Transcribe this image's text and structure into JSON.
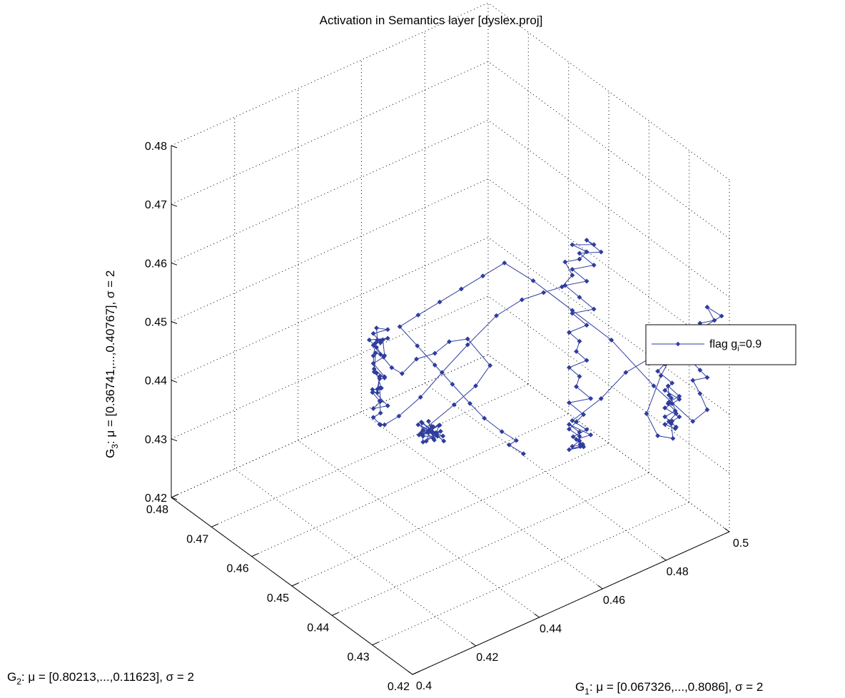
{
  "chart_data": {
    "type": "scatter",
    "title": "Activation in Semantics layer [dyslex.proj]",
    "xlabel": {
      "base": "G",
      "sub": "1",
      "rest": ": μ = [0.067326,...,0.8086], σ = 2"
    },
    "ylabel": {
      "base": "G",
      "sub": "2",
      "rest": ": μ = [0.80213,...,0.11623], σ = 2"
    },
    "zlabel": {
      "base": "G",
      "sub": "3",
      "rest": ": μ = [0.36741,...,0.40767], σ = 2"
    },
    "xlim": [
      0.4,
      0.5
    ],
    "ylim": [
      0.42,
      0.48
    ],
    "zlim": [
      0.42,
      0.48
    ],
    "xticks": [
      "0.4",
      "0.42",
      "0.44",
      "0.46",
      "0.48",
      "0.5"
    ],
    "yticks": [
      "0.42",
      "0.43",
      "0.44",
      "0.45",
      "0.46",
      "0.47",
      "0.48"
    ],
    "zticks": [
      "0.42",
      "0.43",
      "0.44",
      "0.45",
      "0.46",
      "0.47",
      "0.48"
    ],
    "grid": true,
    "legend_position": "right",
    "series": [
      {
        "name": {
          "base": "flag g",
          "sub": "i",
          "rest": "=0.9"
        },
        "color": "#2e3d9e",
        "marker": "diamond",
        "points": [
          [
            0.452,
            0.455,
            0.4305
          ],
          [
            0.451,
            0.456,
            0.4312
          ],
          [
            0.453,
            0.454,
            0.4298
          ],
          [
            0.45,
            0.457,
            0.4321
          ],
          [
            0.452,
            0.455,
            0.4309
          ],
          [
            0.449,
            0.456,
            0.4296
          ],
          [
            0.451,
            0.458,
            0.4315
          ],
          [
            0.453,
            0.456,
            0.4302
          ],
          [
            0.45,
            0.455,
            0.4318
          ],
          [
            0.452,
            0.457,
            0.43
          ],
          [
            0.451,
            0.454,
            0.4311
          ],
          [
            0.449,
            0.456,
            0.4306
          ],
          [
            0.454,
            0.455,
            0.4299
          ],
          [
            0.45,
            0.458,
            0.4313
          ],
          [
            0.452,
            0.456,
            0.4304
          ],
          [
            0.451,
            0.455,
            0.4322
          ],
          [
            0.453,
            0.457,
            0.4308
          ],
          [
            0.45,
            0.456,
            0.4295
          ],
          [
            0.452,
            0.454,
            0.4317
          ],
          [
            0.449,
            0.457,
            0.4303
          ],
          [
            0.451,
            0.456,
            0.431
          ],
          [
            0.453,
            0.455,
            0.432
          ],
          [
            0.45,
            0.457,
            0.4301
          ],
          [
            0.452,
            0.456,
            0.4314
          ],
          [
            0.451,
            0.458,
            0.4297
          ],
          [
            0.454,
            0.456,
            0.4312
          ],
          [
            0.45,
            0.454,
            0.4307
          ],
          [
            0.452,
            0.457,
            0.4319
          ],
          [
            0.451,
            0.455,
            0.4302
          ],
          [
            0.449,
            0.456,
            0.4316
          ],
          [
            0.455,
            0.453,
            0.436
          ],
          [
            0.458,
            0.45,
            0.44
          ],
          [
            0.46,
            0.448,
            0.444
          ],
          [
            0.458,
            0.452,
            0.447
          ],
          [
            0.456,
            0.455,
            0.4455
          ],
          [
            0.454,
            0.457,
            0.443
          ],
          [
            0.452,
            0.46,
            0.441
          ],
          [
            0.45,
            0.462,
            0.438
          ],
          [
            0.448,
            0.463,
            0.439
          ],
          [
            0.447,
            0.465,
            0.4405
          ],
          [
            0.446,
            0.466,
            0.4418
          ],
          [
            0.447,
            0.465,
            0.4428
          ],
          [
            0.448,
            0.464,
            0.4435
          ],
          [
            0.446,
            0.467,
            0.4422
          ],
          [
            0.447,
            0.466,
            0.4412
          ],
          [
            0.448,
            0.465,
            0.4398
          ],
          [
            0.446,
            0.466,
            0.4387
          ],
          [
            0.447,
            0.464,
            0.4372
          ],
          [
            0.448,
            0.466,
            0.436
          ],
          [
            0.446,
            0.465,
            0.4348
          ],
          [
            0.447,
            0.467,
            0.4335
          ],
          [
            0.448,
            0.464,
            0.432
          ],
          [
            0.446,
            0.466,
            0.431
          ],
          [
            0.447,
            0.465,
            0.4325
          ],
          [
            0.448,
            0.466,
            0.434
          ],
          [
            0.446,
            0.464,
            0.4355
          ],
          [
            0.447,
            0.466,
            0.4368
          ],
          [
            0.445,
            0.465,
            0.438
          ],
          [
            0.448,
            0.467,
            0.4395
          ],
          [
            0.447,
            0.464,
            0.4408
          ],
          [
            0.449,
            0.466,
            0.442
          ],
          [
            0.446,
            0.465,
            0.4432
          ],
          [
            0.447,
            0.466,
            0.4445
          ],
          [
            0.448,
            0.464,
            0.445
          ],
          [
            0.446,
            0.466,
            0.4438
          ],
          [
            0.447,
            0.465,
            0.4425
          ],
          [
            0.448,
            0.467,
            0.4412
          ],
          [
            0.446,
            0.466,
            0.44
          ],
          [
            0.445,
            0.465,
            0.4385
          ],
          [
            0.447,
            0.464,
            0.437
          ],
          [
            0.448,
            0.466,
            0.4356
          ],
          [
            0.446,
            0.465,
            0.4342
          ],
          [
            0.447,
            0.467,
            0.433
          ],
          [
            0.448,
            0.466,
            0.4318
          ],
          [
            0.447,
            0.465,
            0.4305
          ],
          [
            0.446,
            0.466,
            0.4295
          ],
          [
            0.447,
            0.465,
            0.4285
          ],
          [
            0.448,
            0.466,
            0.4278
          ],
          [
            0.447,
            0.464,
            0.429
          ],
          [
            0.449,
            0.462,
            0.431
          ],
          [
            0.452,
            0.459,
            0.435
          ],
          [
            0.455,
            0.456,
            0.44
          ],
          [
            0.458,
            0.452,
            0.446
          ],
          [
            0.462,
            0.448,
            0.452
          ],
          [
            0.465,
            0.444,
            0.456
          ],
          [
            0.468,
            0.441,
            0.458
          ],
          [
            0.47,
            0.438,
            0.46
          ],
          [
            0.472,
            0.437,
            0.462
          ],
          [
            0.471,
            0.438,
            0.464
          ],
          [
            0.473,
            0.436,
            0.465
          ],
          [
            0.474,
            0.435,
            0.4665
          ],
          [
            0.472,
            0.437,
            0.4672
          ],
          [
            0.475,
            0.434,
            0.468
          ],
          [
            0.474,
            0.435,
            0.4685
          ],
          [
            0.476,
            0.433,
            0.467
          ],
          [
            0.473,
            0.436,
            0.466
          ],
          [
            0.475,
            0.434,
            0.4645
          ],
          [
            0.472,
            0.437,
            0.463
          ],
          [
            0.474,
            0.435,
            0.4615
          ],
          [
            0.471,
            0.438,
            0.46
          ],
          [
            0.473,
            0.436,
            0.4585
          ],
          [
            0.475,
            0.434,
            0.457
          ],
          [
            0.472,
            0.437,
            0.4555
          ],
          [
            0.474,
            0.435,
            0.454
          ],
          [
            0.471,
            0.437,
            0.4525
          ],
          [
            0.473,
            0.436,
            0.451
          ],
          [
            0.472,
            0.436,
            0.4495
          ],
          [
            0.474,
            0.435,
            0.448
          ],
          [
            0.471,
            0.437,
            0.4465
          ],
          [
            0.473,
            0.436,
            0.445
          ],
          [
            0.472,
            0.436,
            0.4435
          ],
          [
            0.474,
            0.434,
            0.442
          ],
          [
            0.471,
            0.437,
            0.4405
          ],
          [
            0.473,
            0.435,
            0.439
          ],
          [
            0.472,
            0.436,
            0.4375
          ],
          [
            0.471,
            0.437,
            0.436
          ],
          [
            0.473,
            0.436,
            0.4348
          ],
          [
            0.472,
            0.435,
            0.4338
          ],
          [
            0.474,
            0.436,
            0.433
          ],
          [
            0.471,
            0.437,
            0.4325
          ],
          [
            0.473,
            0.435,
            0.4335
          ],
          [
            0.472,
            0.436,
            0.4345
          ],
          [
            0.474,
            0.434,
            0.4358
          ],
          [
            0.471,
            0.437,
            0.4368
          ],
          [
            0.473,
            0.436,
            0.4355
          ],
          [
            0.472,
            0.435,
            0.4342
          ],
          [
            0.474,
            0.436,
            0.4332
          ],
          [
            0.472,
            0.437,
            0.4328
          ],
          [
            0.473,
            0.436,
            0.434
          ],
          [
            0.471,
            0.436,
            0.4352
          ],
          [
            0.474,
            0.435,
            0.4362
          ],
          [
            0.472,
            0.437,
            0.4372
          ],
          [
            0.476,
            0.433,
            0.442
          ],
          [
            0.48,
            0.43,
            0.447
          ],
          [
            0.484,
            0.427,
            0.45
          ],
          [
            0.486,
            0.425,
            0.4495
          ],
          [
            0.485,
            0.426,
            0.448
          ],
          [
            0.487,
            0.424,
            0.4465
          ],
          [
            0.486,
            0.425,
            0.445
          ],
          [
            0.488,
            0.423,
            0.444
          ],
          [
            0.487,
            0.424,
            0.443
          ],
          [
            0.486,
            0.425,
            0.442
          ],
          [
            0.488,
            0.423,
            0.441
          ],
          [
            0.487,
            0.424,
            0.44
          ],
          [
            0.486,
            0.425,
            0.4392
          ],
          [
            0.488,
            0.424,
            0.4385
          ],
          [
            0.487,
            0.423,
            0.4395
          ],
          [
            0.486,
            0.425,
            0.4405
          ],
          [
            0.488,
            0.424,
            0.4415
          ],
          [
            0.487,
            0.425,
            0.4425
          ],
          [
            0.486,
            0.424,
            0.4435
          ],
          [
            0.488,
            0.423,
            0.4445
          ],
          [
            0.487,
            0.425,
            0.4455
          ],
          [
            0.486,
            0.424,
            0.4447
          ],
          [
            0.488,
            0.425,
            0.4432
          ],
          [
            0.487,
            0.423,
            0.4418
          ],
          [
            0.486,
            0.424,
            0.4402
          ],
          [
            0.488,
            0.425,
            0.4388
          ],
          [
            0.486,
            0.423,
            0.4378
          ],
          [
            0.485,
            0.426,
            0.437
          ],
          [
            0.484,
            0.428,
            0.44
          ],
          [
            0.486,
            0.426,
            0.447
          ],
          [
            0.488,
            0.424,
            0.452
          ],
          [
            0.492,
            0.421,
            0.456
          ],
          [
            0.495,
            0.418,
            0.459
          ],
          [
            0.493,
            0.42,
            0.46
          ],
          [
            0.494,
            0.419,
            0.458
          ],
          [
            0.492,
            0.421,
            0.457
          ],
          [
            0.493,
            0.42,
            0.455
          ],
          [
            0.491,
            0.422,
            0.454
          ],
          [
            0.492,
            0.421,
            0.4525
          ],
          [
            0.493,
            0.42,
            0.451
          ],
          [
            0.491,
            0.422,
            0.45
          ],
          [
            0.492,
            0.421,
            0.449
          ],
          [
            0.493,
            0.42,
            0.448
          ],
          [
            0.491,
            0.422,
            0.447
          ],
          [
            0.492,
            0.421,
            0.445
          ],
          [
            0.493,
            0.42,
            0.4425
          ],
          [
            0.491,
            0.422,
            0.44
          ],
          [
            0.485,
            0.427,
            0.445
          ],
          [
            0.478,
            0.432,
            0.452
          ],
          [
            0.472,
            0.437,
            0.456
          ],
          [
            0.466,
            0.442,
            0.46
          ],
          [
            0.462,
            0.446,
            0.462
          ],
          [
            0.459,
            0.449,
            0.459
          ],
          [
            0.456,
            0.452,
            0.456
          ],
          [
            0.453,
            0.455,
            0.453
          ],
          [
            0.45,
            0.458,
            0.45
          ],
          [
            0.448,
            0.461,
            0.447
          ],
          [
            0.451,
            0.459,
            0.444
          ],
          [
            0.454,
            0.457,
            0.441
          ],
          [
            0.457,
            0.455,
            0.438
          ],
          [
            0.46,
            0.453,
            0.435
          ],
          [
            0.462,
            0.451,
            0.433
          ],
          [
            0.465,
            0.449,
            0.431
          ],
          [
            0.467,
            0.447,
            0.43
          ],
          [
            0.466,
            0.448,
            0.429
          ],
          [
            0.468,
            0.446,
            0.428
          ]
        ]
      }
    ]
  }
}
